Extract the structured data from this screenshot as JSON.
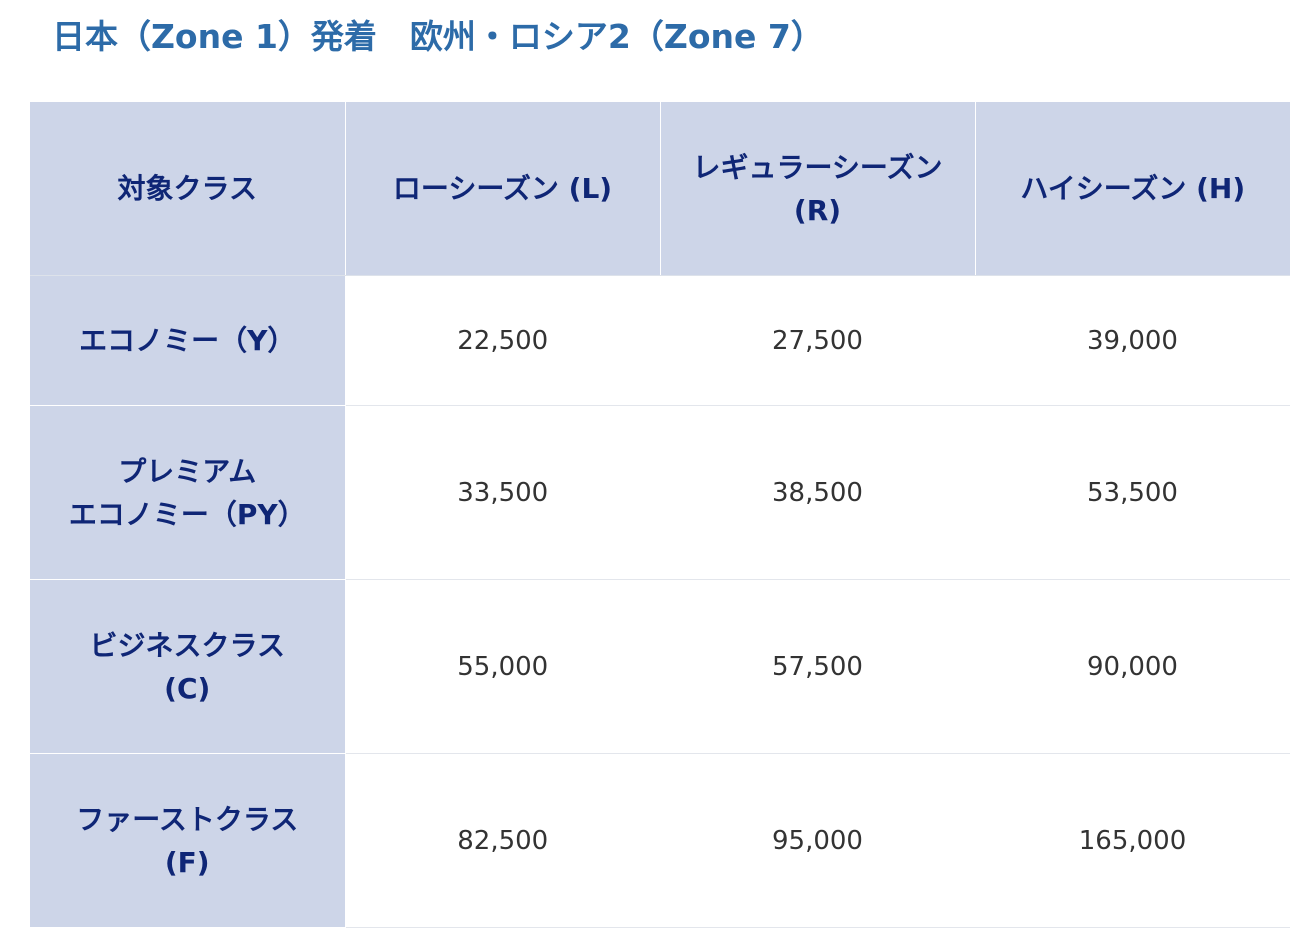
{
  "title": "日本（Zone 1）発着　欧州・ロシア2（Zone 7）",
  "table": {
    "headers": [
      [
        "対象クラス"
      ],
      [
        "ローシーズン (L)"
      ],
      [
        "レギュラーシーズン",
        "(R)"
      ],
      [
        "ハイシーズン (H)"
      ]
    ],
    "rows": [
      {
        "label": [
          "エコノミー（Y）"
        ],
        "values": [
          "22,500",
          "27,500",
          "39,000"
        ]
      },
      {
        "label": [
          "プレミアム",
          "エコノミー（PY）"
        ],
        "values": [
          "33,500",
          "38,500",
          "53,500"
        ]
      },
      {
        "label": [
          "ビジネスクラス",
          "(C)"
        ],
        "values": [
          "55,000",
          "57,500",
          "90,000"
        ]
      },
      {
        "label": [
          "ファーストクラス",
          "(F)"
        ],
        "values": [
          "82,500",
          "95,000",
          "165,000"
        ]
      }
    ]
  },
  "colors": {
    "title": "#2d6ba8",
    "header_bg": "#cdd5e8",
    "header_text": "#0f2676",
    "value_text": "#333333"
  }
}
